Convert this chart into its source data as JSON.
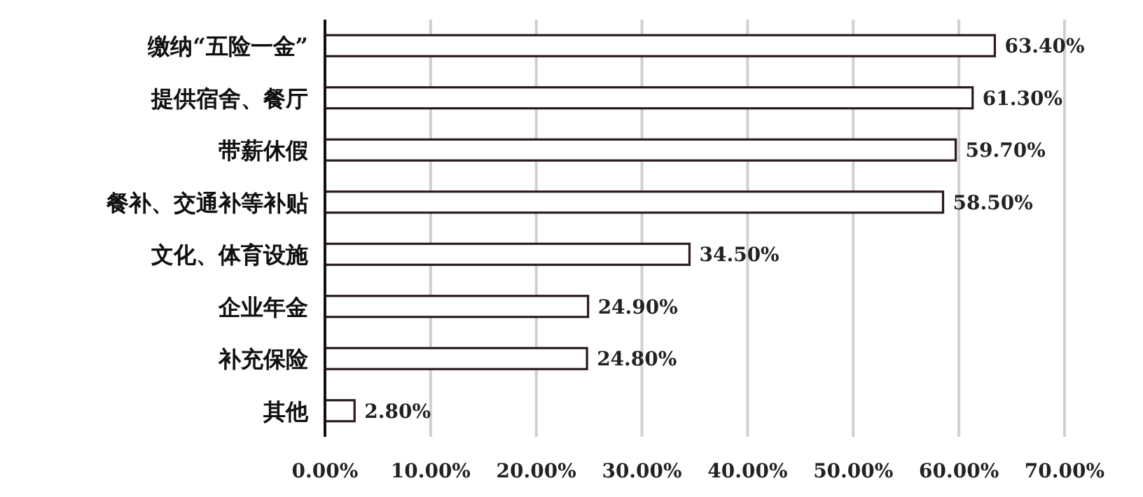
{
  "chart_data": {
    "type": "bar",
    "orientation": "horizontal",
    "categories": [
      "缴纳“五险一金”",
      "提供宿舍、餐厅",
      "带薪休假",
      "餐补、交通补等补贴",
      "文化、体育设施",
      "企业年金",
      "补充保险",
      "其他"
    ],
    "values": [
      63.4,
      61.3,
      59.7,
      58.5,
      34.5,
      24.9,
      24.8,
      2.8
    ],
    "value_labels": [
      "63.40%",
      "61.30%",
      "59.70%",
      "58.50%",
      "34.50%",
      "24.90%",
      "24.80%",
      "2.80%"
    ],
    "color": "#ffffff",
    "xlim": [
      0,
      70
    ],
    "xticks": [
      {
        "value": 0,
        "label": "0.00%"
      },
      {
        "value": 10,
        "label": "10.00%"
      },
      {
        "value": 20,
        "label": "20.00%"
      },
      {
        "value": 30,
        "label": "30.00%"
      },
      {
        "value": 40,
        "label": "40.00%"
      },
      {
        "value": 50,
        "label": "50.00%"
      },
      {
        "value": 60,
        "label": "60.00%"
      },
      {
        "value": 70,
        "label": "70.00%"
      }
    ],
    "grid": "x"
  }
}
